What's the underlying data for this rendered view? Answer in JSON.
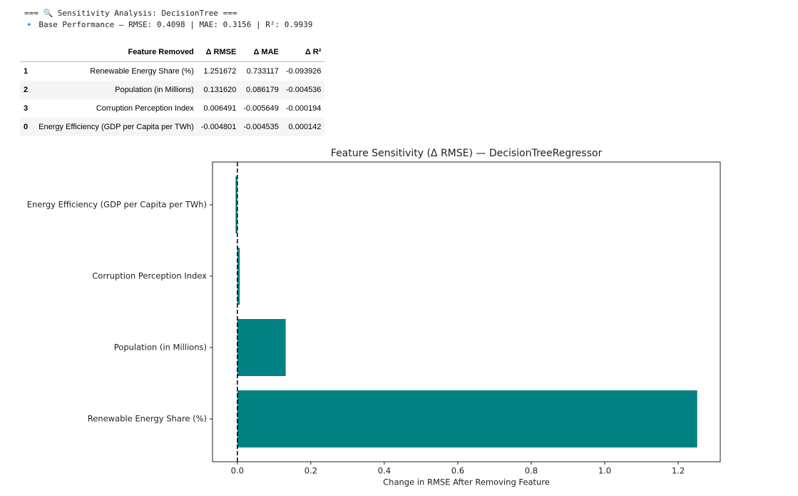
{
  "output": {
    "heading": "=== 🔍 Sensitivity Analysis: DecisionTree ===",
    "base": "🔹 Base Performance — RMSE: 0.4098 | MAE: 0.3156 | R²: 0.9939"
  },
  "table": {
    "columns": [
      "Feature Removed",
      "Δ RMSE",
      "Δ MAE",
      "Δ R²"
    ],
    "rows": [
      [
        "1",
        "Renewable Energy Share (%)",
        "1.251672",
        "0.733117",
        "-0.093926"
      ],
      [
        "2",
        "Population (in Millions)",
        "0.131620",
        "0.086179",
        "-0.004536"
      ],
      [
        "3",
        "Corruption Perception Index",
        "0.006491",
        "-0.005649",
        "-0.000194"
      ],
      [
        "0",
        "Energy Efficiency (GDP per Capita per TWh)",
        "-0.004801",
        "-0.004535",
        "0.000142"
      ]
    ]
  },
  "chart_data": {
    "type": "barh",
    "title": "Feature Sensitivity (Δ RMSE) — DecisionTreeRegressor",
    "x_label": "Change in RMSE After Removing Feature",
    "categories": [
      "Renewable Energy Share (%)",
      "Population (in Millions)",
      "Corruption Perception Index",
      "Energy Efficiency (GDP per Capita per TWh)"
    ],
    "values": [
      1.251672,
      0.13162,
      0.006491,
      -0.004801
    ],
    "color": "#008080",
    "xlim": [
      -0.0676,
      1.3145
    ],
    "xticks": [
      {
        "value": 0,
        "label": "0.0"
      },
      0.2,
      0.4,
      0.6,
      0.8,
      {
        "value": 1,
        "label": "1.0"
      },
      1.2
    ],
    "vline": 0
  }
}
